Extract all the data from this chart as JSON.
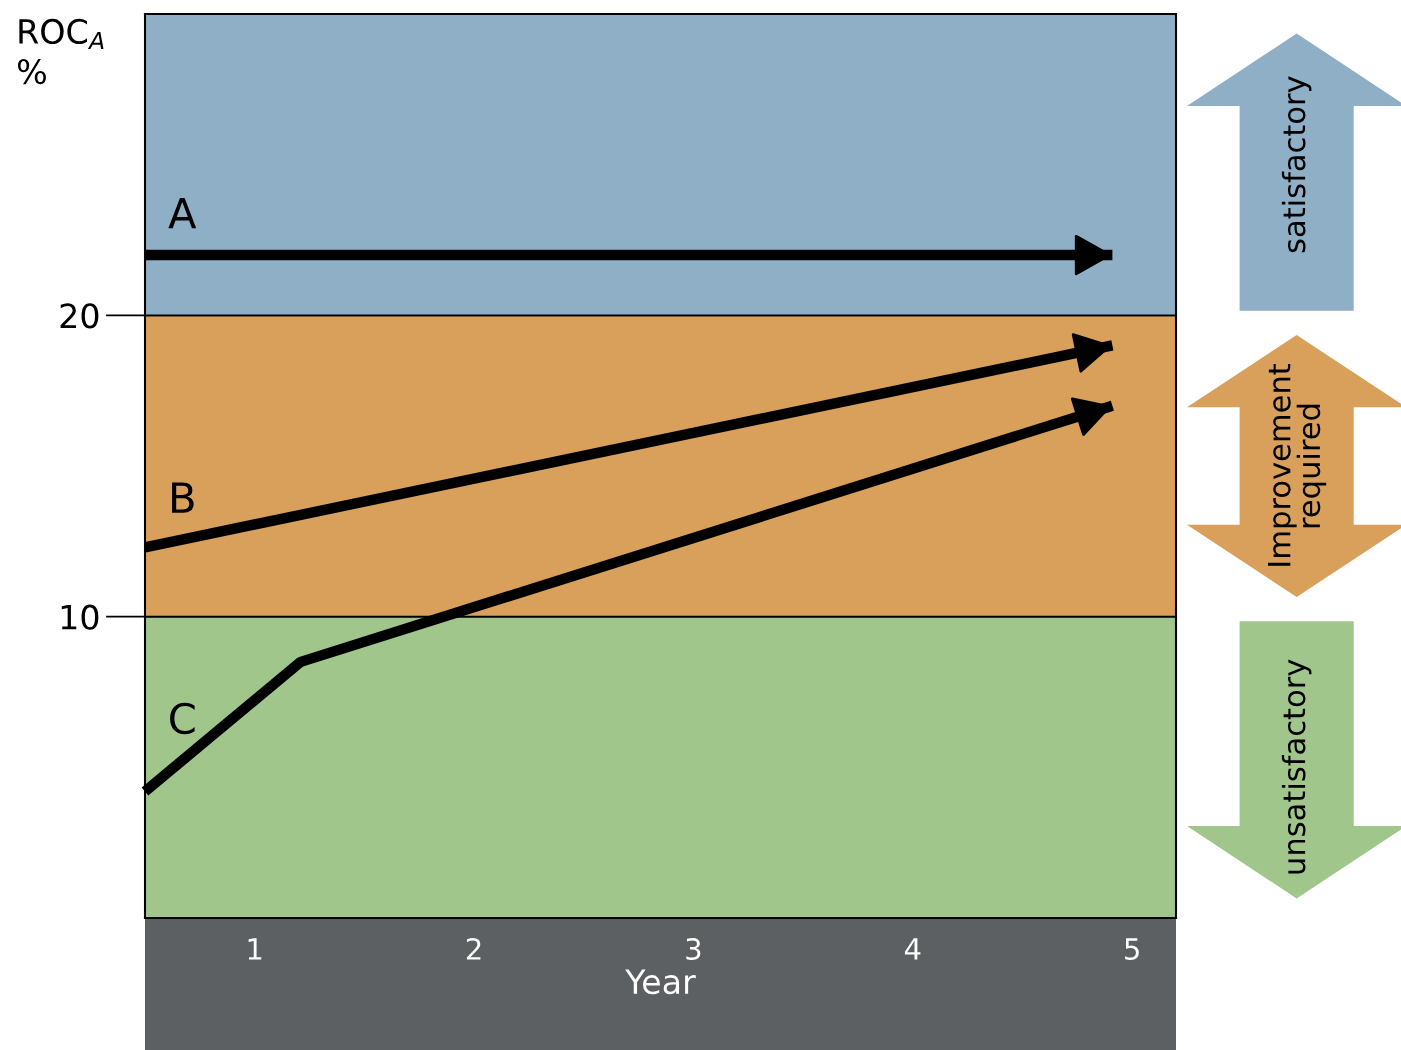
{
  "chart_data": {
    "type": "line",
    "ylabel": "ROC$_{A}$\n%",
    "xlabel": "Year",
    "xlim": [
      0.5,
      5.2
    ],
    "ylim": [
      0,
      30
    ],
    "xticks": [
      1,
      2,
      3,
      4,
      5
    ],
    "yticks": [
      10,
      20
    ],
    "grid": false,
    "legend": false,
    "marker": "none",
    "line_style": "solid",
    "series": [
      {
        "name": "A",
        "color": "#000000",
        "x": [
          0.5,
          4.91
        ],
        "values": [
          22,
          22
        ]
      },
      {
        "name": "B",
        "color": "#000000",
        "x": [
          0.5,
          4.91
        ],
        "values": [
          12.3,
          19.0
        ]
      },
      {
        "name": "C",
        "color": "#000000",
        "x": [
          0.5,
          1.21,
          4.91
        ],
        "values": [
          4.2,
          8.5,
          17.0
        ]
      }
    ],
    "bands": [
      {
        "axis": "y",
        "from": 0,
        "to": 10,
        "color": "#a0c68c"
      },
      {
        "axis": "y",
        "from": 10,
        "to": 20,
        "color": "#d9a05b"
      },
      {
        "axis": "y",
        "from": 20,
        "to": 30,
        "color": "#8eafc6"
      }
    ],
    "annotations": [
      "unsatisfactory",
      "Improvement\nrequired",
      "satisfactory"
    ]
  }
}
